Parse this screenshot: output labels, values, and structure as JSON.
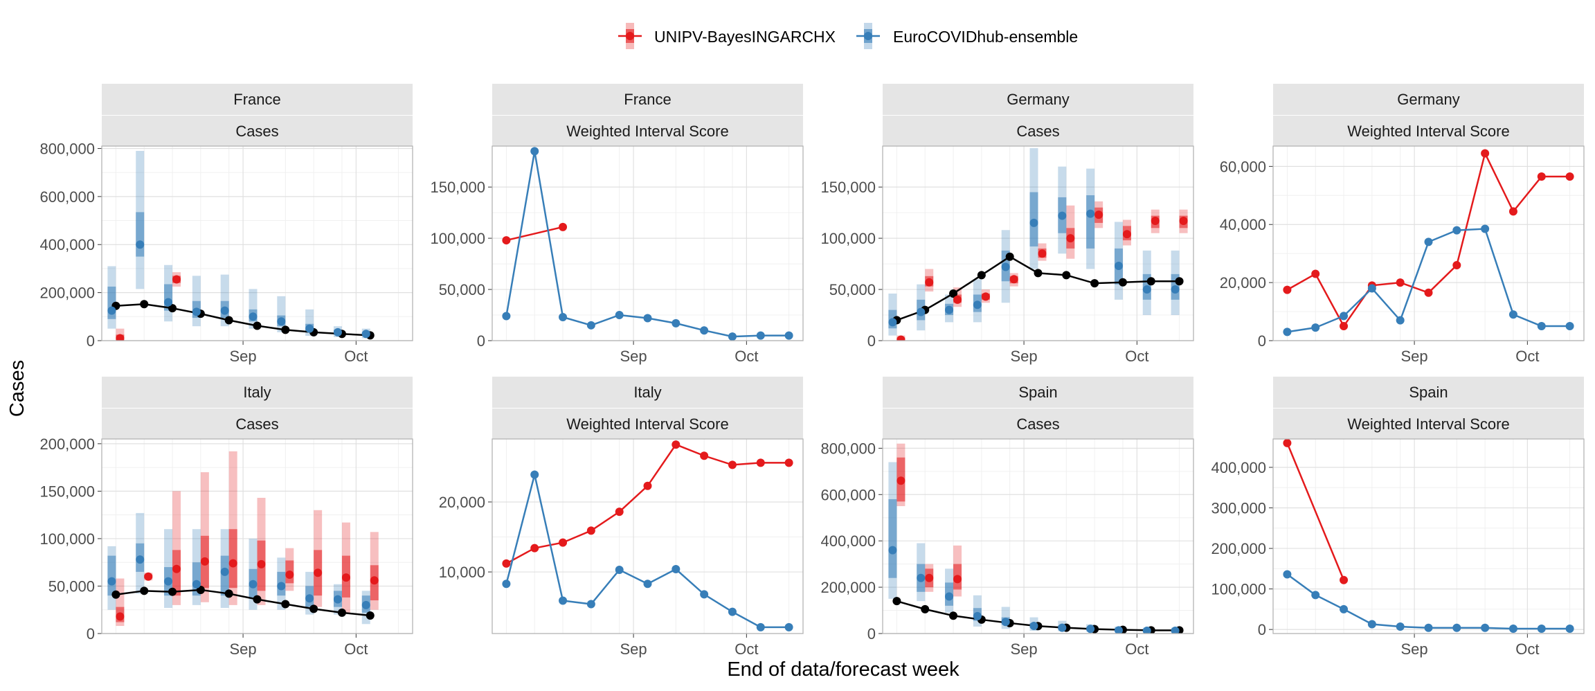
{
  "figure": {
    "ylabel": "Cases",
    "xlabel": "End of data/forecast week"
  },
  "legend": {
    "position": "top",
    "entries": [
      {
        "label": "UNIPV-BayesINGARCHX",
        "color": "#e41a1c"
      },
      {
        "label": "EuroCOVIDhub-ensemble",
        "color": "#377eb8"
      }
    ]
  },
  "colors": {
    "observed": "#000000",
    "model_red": "#e41a1c",
    "model_blue": "#377eb8",
    "strip_bg": "#e5e5e5",
    "grid_major": "#e0e0e0",
    "grid_minor": "#f0f0f0",
    "axis_text": "#4d4d4d"
  },
  "x_axis": {
    "weeks": [
      "2021-07-31",
      "2021-08-07",
      "2021-08-14",
      "2021-08-21",
      "2021-08-28",
      "2021-09-04",
      "2021-09-11",
      "2021-09-18",
      "2021-09-25",
      "2021-10-02",
      "2021-10-09"
    ],
    "tick_labels": [
      "Sep",
      "Oct"
    ]
  },
  "chart_data": [
    {
      "type": "line",
      "strip_top": "France",
      "strip_bottom": "Cases",
      "ylim": [
        0,
        810000
      ],
      "yticks": [
        0,
        200000,
        400000,
        600000,
        800000
      ],
      "ytick_labels": [
        "0",
        "200,000",
        "400,000",
        "600,000",
        "800,000"
      ],
      "observed": {
        "x": [
          0,
          1,
          2,
          3,
          4,
          5,
          6,
          7,
          8,
          9
        ],
        "y": [
          145000,
          152000,
          135000,
          112000,
          85000,
          62000,
          45000,
          35000,
          28000,
          22000
        ]
      },
      "series": [
        {
          "name": "UNIPV-BayesINGARCHX",
          "x": [
            0,
            2
          ],
          "median": [
            10000,
            255000
          ],
          "lo50": [
            0,
            240000
          ],
          "hi50": [
            25000,
            270000
          ],
          "lo90": [
            0,
            225000
          ],
          "hi90": [
            50000,
            285000
          ]
        },
        {
          "name": "EuroCOVIDhub-ensemble",
          "x": [
            0,
            1,
            2,
            3,
            4,
            5,
            6,
            7,
            8,
            9
          ],
          "median": [
            125000,
            400000,
            160000,
            120000,
            125000,
            100000,
            80000,
            50000,
            35000,
            28000
          ],
          "lo50": [
            90000,
            350000,
            125000,
            95000,
            95000,
            80000,
            60000,
            40000,
            25000,
            20000
          ],
          "hi50": [
            225000,
            535000,
            235000,
            165000,
            165000,
            130000,
            105000,
            70000,
            45000,
            35000
          ],
          "lo90": [
            50000,
            215000,
            80000,
            60000,
            60000,
            50000,
            35000,
            20000,
            15000,
            10000
          ],
          "hi90": [
            310000,
            790000,
            315000,
            270000,
            275000,
            215000,
            185000,
            130000,
            60000,
            50000
          ]
        }
      ]
    },
    {
      "type": "line",
      "strip_top": "France",
      "strip_bottom": "Weighted Interval Score",
      "ylim": [
        0,
        190000
      ],
      "yticks": [
        0,
        50000,
        100000,
        150000
      ],
      "ytick_labels": [
        "0",
        "50,000",
        "100,000",
        "150,000"
      ],
      "series": [
        {
          "name": "UNIPV-BayesINGARCHX",
          "x": [
            0,
            2
          ],
          "y": [
            98000,
            111000
          ]
        },
        {
          "name": "EuroCOVIDhub-ensemble",
          "x": [
            0,
            1,
            2,
            3,
            4,
            5,
            6,
            7,
            8,
            9,
            10
          ],
          "y": [
            24000,
            185000,
            23000,
            15000,
            25000,
            22000,
            17000,
            10000,
            4000,
            5000,
            5000
          ]
        }
      ]
    },
    {
      "type": "line",
      "strip_top": "Germany",
      "strip_bottom": "Cases",
      "ylim": [
        0,
        190000
      ],
      "yticks": [
        0,
        50000,
        100000,
        150000
      ],
      "ytick_labels": [
        "0",
        "50,000",
        "100,000",
        "150,000"
      ],
      "observed": {
        "x": [
          0,
          1,
          2,
          3,
          4,
          5,
          6,
          7,
          8,
          9,
          10
        ],
        "y": [
          20000,
          30000,
          46000,
          64000,
          82000,
          66000,
          64000,
          56000,
          57000,
          58000,
          58000
        ]
      },
      "series": [
        {
          "name": "UNIPV-BayesINGARCHX",
          "x": [
            0,
            1,
            2,
            3,
            4,
            5,
            6,
            7,
            8,
            9,
            10
          ],
          "median": [
            1000,
            57000,
            40000,
            43000,
            60000,
            85000,
            100000,
            123000,
            104000,
            117000,
            117000
          ],
          "lo50": [
            0,
            53000,
            37000,
            40000,
            56000,
            81000,
            90000,
            115000,
            98000,
            110000,
            110000
          ],
          "hi50": [
            3000,
            63000,
            45000,
            46000,
            63000,
            90000,
            110000,
            130000,
            112000,
            122000,
            122000
          ],
          "lo90": [
            0,
            48000,
            33000,
            37000,
            53000,
            78000,
            80000,
            110000,
            93000,
            105000,
            105000
          ],
          "hi90": [
            5000,
            70000,
            52000,
            50000,
            66000,
            95000,
            132000,
            136000,
            118000,
            128000,
            128000
          ]
        },
        {
          "name": "EuroCOVIDhub-ensemble",
          "x": [
            0,
            1,
            2,
            3,
            4,
            5,
            6,
            7,
            8,
            9,
            10
          ],
          "median": [
            18000,
            28000,
            30000,
            35000,
            72000,
            115000,
            122000,
            124000,
            73000,
            50000,
            50000
          ],
          "lo50": [
            12000,
            20000,
            25000,
            28000,
            58000,
            92000,
            105000,
            90000,
            55000,
            40000,
            40000
          ],
          "hi50": [
            30000,
            40000,
            36000,
            45000,
            88000,
            145000,
            140000,
            142000,
            90000,
            65000,
            65000
          ],
          "lo90": [
            5000,
            10000,
            18000,
            18000,
            37000,
            70000,
            85000,
            70000,
            40000,
            25000,
            25000
          ],
          "hi90": [
            46000,
            55000,
            45000,
            60000,
            108000,
            188000,
            170000,
            168000,
            116000,
            88000,
            88000
          ]
        }
      ]
    },
    {
      "type": "line",
      "strip_top": "Germany",
      "strip_bottom": "Weighted Interval Score",
      "ylim": [
        0,
        67000
      ],
      "yticks": [
        0,
        20000,
        40000,
        60000
      ],
      "ytick_labels": [
        "0",
        "20,000",
        "40,000",
        "60,000"
      ],
      "series": [
        {
          "name": "UNIPV-BayesINGARCHX",
          "x": [
            0,
            1,
            2,
            3,
            4,
            5,
            6,
            7,
            8,
            9,
            10
          ],
          "y": [
            17500,
            23000,
            5000,
            19000,
            20000,
            16500,
            26000,
            64500,
            44500,
            56500,
            56500
          ]
        },
        {
          "name": "EuroCOVIDhub-ensemble",
          "x": [
            0,
            1,
            2,
            3,
            4,
            5,
            6,
            7,
            8,
            9,
            10
          ],
          "y": [
            3000,
            4500,
            8500,
            18000,
            7000,
            34000,
            38000,
            38500,
            9000,
            5000,
            5000
          ]
        }
      ]
    },
    {
      "type": "line",
      "strip_top": "Italy",
      "strip_bottom": "Cases",
      "ylim": [
        0,
        205000
      ],
      "yticks": [
        0,
        50000,
        100000,
        150000,
        200000
      ],
      "ytick_labels": [
        "0",
        "50,000",
        "100,000",
        "150,000",
        "200,000"
      ],
      "observed": {
        "x": [
          0,
          1,
          2,
          3,
          4,
          5,
          6,
          7,
          8,
          9
        ],
        "y": [
          41000,
          45000,
          44000,
          46000,
          42000,
          36000,
          31000,
          26000,
          22000,
          19000
        ]
      },
      "series": [
        {
          "name": "UNIPV-BayesINGARCHX",
          "x": [
            0,
            1,
            2,
            3,
            4,
            5,
            6,
            7,
            8,
            9
          ],
          "median": [
            18000,
            60000,
            68000,
            76000,
            74000,
            73000,
            62000,
            64000,
            59000,
            56000
          ],
          "lo50": [
            12000,
            58000,
            40000,
            48000,
            48000,
            45000,
            53000,
            40000,
            38000,
            35000
          ],
          "hi50": [
            28000,
            62000,
            88000,
            103000,
            110000,
            98000,
            77000,
            88000,
            82000,
            72000
          ],
          "lo90": [
            8000,
            56000,
            30000,
            33000,
            30000,
            30000,
            45000,
            28000,
            22000,
            25000
          ],
          "hi90": [
            58000,
            64000,
            150000,
            170000,
            192000,
            143000,
            90000,
            130000,
            117000,
            107000
          ]
        },
        {
          "name": "EuroCOVIDhub-ensemble",
          "x": [
            0,
            1,
            2,
            3,
            4,
            5,
            6,
            7,
            8,
            9
          ],
          "median": [
            55000,
            78000,
            55000,
            52000,
            65000,
            52000,
            50000,
            37000,
            36000,
            30000
          ],
          "lo50": [
            40000,
            65000,
            40000,
            40000,
            40000,
            38000,
            40000,
            28000,
            28000,
            22000
          ],
          "hi50": [
            82000,
            95000,
            70000,
            75000,
            82000,
            68000,
            65000,
            50000,
            45000,
            40000
          ],
          "lo90": [
            25000,
            42000,
            27000,
            30000,
            27000,
            25000,
            25000,
            20000,
            20000,
            10000
          ],
          "hi90": [
            92000,
            127000,
            110000,
            110000,
            110000,
            100000,
            80000,
            65000,
            52000,
            45000
          ]
        }
      ]
    },
    {
      "type": "line",
      "strip_top": "Italy",
      "strip_bottom": "Weighted Interval Score",
      "ylim": [
        1200,
        29000
      ],
      "yticks": [
        10000,
        20000
      ],
      "ytick_labels": [
        "10,000",
        "20,000"
      ],
      "series": [
        {
          "name": "UNIPV-BayesINGARCHX",
          "x": [
            0,
            1,
            2,
            3,
            4,
            5,
            6,
            7,
            8,
            9,
            10
          ],
          "y": [
            11200,
            13400,
            14200,
            15900,
            18600,
            22300,
            28200,
            26600,
            25300,
            25600,
            25600
          ]
        },
        {
          "name": "EuroCOVIDhub-ensemble",
          "x": [
            0,
            1,
            2,
            3,
            4,
            5,
            6,
            7,
            8,
            9,
            10
          ],
          "y": [
            8300,
            23900,
            5900,
            5400,
            10300,
            8300,
            10400,
            6800,
            4300,
            2100,
            2100
          ]
        }
      ]
    },
    {
      "type": "line",
      "strip_top": "Spain",
      "strip_bottom": "Cases",
      "ylim": [
        0,
        840000
      ],
      "yticks": [
        0,
        200000,
        400000,
        600000,
        800000
      ],
      "ytick_labels": [
        "0",
        "200,000",
        "400,000",
        "600,000",
        "800,000"
      ],
      "observed": {
        "x": [
          0,
          1,
          2,
          3,
          4,
          5,
          6,
          7,
          8,
          9,
          10
        ],
        "y": [
          140000,
          105000,
          77000,
          60000,
          45000,
          32000,
          25000,
          19000,
          16000,
          14000,
          14000
        ]
      },
      "series": [
        {
          "name": "UNIPV-BayesINGARCHX",
          "x": [
            0,
            1,
            2
          ],
          "median": [
            660000,
            240000,
            235000
          ],
          "lo50": [
            570000,
            200000,
            190000
          ],
          "hi50": [
            760000,
            280000,
            300000
          ],
          "lo90": [
            550000,
            180000,
            160000
          ],
          "hi90": [
            820000,
            300000,
            380000
          ]
        },
        {
          "name": "EuroCOVIDhub-ensemble",
          "x": [
            0,
            1,
            2,
            3,
            4,
            5,
            6,
            7,
            8,
            9,
            10
          ],
          "median": [
            360000,
            240000,
            160000,
            75000,
            50000,
            33000,
            25000,
            20000,
            14000,
            12000,
            12000
          ],
          "lo50": [
            240000,
            180000,
            120000,
            55000,
            38000,
            25000,
            18000,
            15000,
            10000,
            9000,
            9000
          ],
          "hi50": [
            580000,
            300000,
            220000,
            110000,
            70000,
            45000,
            35000,
            27000,
            20000,
            15000,
            15000
          ],
          "lo90": [
            150000,
            140000,
            90000,
            30000,
            20000,
            12000,
            10000,
            8000,
            6000,
            5000,
            5000
          ],
          "hi90": [
            740000,
            390000,
            280000,
            165000,
            115000,
            70000,
            55000,
            40000,
            30000,
            25000,
            25000
          ]
        }
      ]
    },
    {
      "type": "line",
      "strip_top": "Spain",
      "strip_bottom": "Weighted Interval Score",
      "ylim": [
        -10000,
        470000
      ],
      "yticks": [
        0,
        100000,
        200000,
        300000,
        400000
      ],
      "ytick_labels": [
        "0",
        "100,000",
        "200,000",
        "300,000",
        "400,000"
      ],
      "series": [
        {
          "name": "UNIPV-BayesINGARCHX",
          "x": [
            0,
            2
          ],
          "y": [
            460000,
            122000
          ]
        },
        {
          "name": "EuroCOVIDhub-ensemble",
          "x": [
            0,
            1,
            2,
            3,
            4,
            5,
            6,
            7,
            8,
            9,
            10
          ],
          "y": [
            136000,
            85000,
            50000,
            13000,
            7000,
            4000,
            4000,
            4000,
            2000,
            2000,
            2000
          ]
        }
      ]
    }
  ]
}
